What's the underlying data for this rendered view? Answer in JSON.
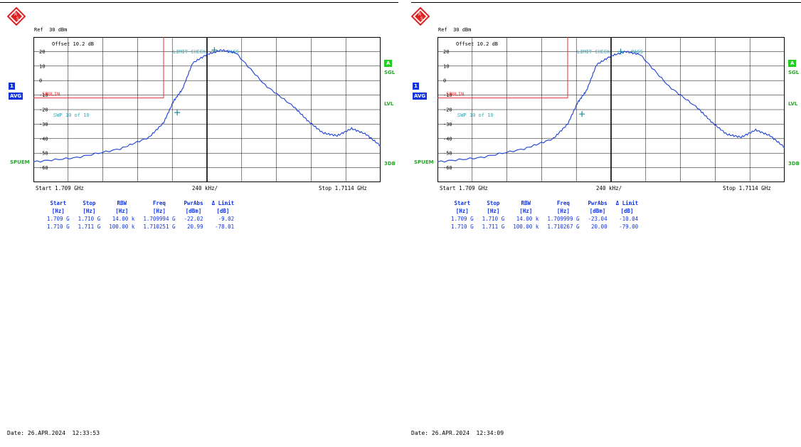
{
  "colors": {
    "trace": "#1a3fd8",
    "limit": "#e83030",
    "grid": "#000000",
    "label": "#3aa6b9",
    "blue_tag": "#1133dd",
    "green_tag": "#22cc22"
  },
  "panels": [
    {
      "ref_text": "Ref  30 dBm",
      "offset_text": "Offset  10.2 dB",
      "swp_text": "SWP   10 of    10",
      "limit_line_label": "SPULIN",
      "limit_check_label": "LIMIT CHECK",
      "limit_check_result": "PASS",
      "side_left": {
        "trace_num": "1",
        "trace_mode": "AVG",
        "mode": "SPUEM"
      },
      "side_right": {
        "A": "A",
        "SGL": "SGL",
        "LVL": "LVL",
        "DB": "3DB"
      },
      "start_label": "Start 1.709 GHz",
      "span_label": "240 kHz/",
      "stop_label": "Stop 1.7114 GHz",
      "table": {
        "headers": [
          [
            "Start",
            "[Hz]"
          ],
          [
            "Stop",
            "[Hz]"
          ],
          [
            "RBW",
            "[Hz]"
          ],
          [
            "Freq",
            "[Hz]"
          ],
          [
            "PwrAbs",
            "[dBm]"
          ],
          [
            "Δ Limit",
            "[dB]"
          ]
        ],
        "rows": [
          [
            "1.709 G",
            "1.710 G",
            "14.00 k",
            "1.709994 G",
            "-22.02",
            "-9.02"
          ],
          [
            "1.710 G",
            "1.711 G",
            "100.00 k",
            "1.710251 G",
            "20.99",
            "-78.01"
          ]
        ]
      },
      "date_text": "Date: 26.APR.2024  12:33:53",
      "chart_data": {
        "type": "line",
        "xlabel": "",
        "ylabel": "",
        "xlim": [
          1.709,
          1.7114
        ],
        "ylim": [
          -70,
          30
        ],
        "y_ticks": [
          20,
          10,
          0,
          -10,
          -20,
          -30,
          -40,
          -50,
          -60
        ],
        "grid": true,
        "x_unit": "GHz",
        "y_unit": "dBm",
        "limit_line": [
          [
            1.709,
            -12
          ],
          [
            1.7099,
            -12
          ]
        ],
        "limit_vertical_x": 1.7099,
        "markers": [
          [
            1.709994,
            -22.02
          ],
          [
            1.710251,
            20.99
          ]
        ],
        "series": [
          {
            "x": [
              1.709,
              1.7093,
              1.7096,
              1.7098,
              1.7099,
              1.70997,
              1.71003,
              1.7101,
              1.7102,
              1.7103,
              1.7104,
              1.7106,
              1.7108,
              1.7109,
              1.711,
              1.7111,
              1.7112,
              1.7113,
              1.7114
            ],
            "y": [
              -56,
              -53,
              -47,
              -39,
              -29,
              -14,
              -6,
              12,
              18,
              21,
              19,
              -3,
              -18,
              -28,
              -36,
              -38,
              -33,
              -37,
              -45
            ]
          }
        ]
      }
    },
    {
      "ref_text": "Ref  30 dBm",
      "offset_text": "Offset  10.2 dB",
      "swp_text": "SWP   10 of    10",
      "limit_line_label": "SPULIN",
      "limit_check_label": "LIMIT CHECK",
      "limit_check_result": "PASS",
      "side_left": {
        "trace_num": "1",
        "trace_mode": "AVG",
        "mode": "SPUEM"
      },
      "side_right": {
        "A": "A",
        "SGL": "SGL",
        "LVL": "LVL",
        "DB": "3DB"
      },
      "start_label": "Start 1.709 GHz",
      "span_label": "240 kHz/",
      "stop_label": "Stop 1.7114 GHz",
      "table": {
        "headers": [
          [
            "Start",
            "[Hz]"
          ],
          [
            "Stop",
            "[Hz]"
          ],
          [
            "RBW",
            "[Hz]"
          ],
          [
            "Freq",
            "[Hz]"
          ],
          [
            "PwrAbs",
            "[dBm]"
          ],
          [
            "Δ Limit",
            "[dB]"
          ]
        ],
        "rows": [
          [
            "1.709 G",
            "1.710 G",
            "14.00 k",
            "1.709999 G",
            "-23.04",
            "-10.04"
          ],
          [
            "1.710 G",
            "1.711 G",
            "100.00 k",
            "1.710267 G",
            "20.00",
            "-79.00"
          ]
        ]
      },
      "date_text": "Date: 26.APR.2024  12:34:09",
      "chart_data": {
        "type": "line",
        "xlabel": "",
        "ylabel": "",
        "xlim": [
          1.709,
          1.7114
        ],
        "ylim": [
          -70,
          30
        ],
        "y_ticks": [
          20,
          10,
          0,
          -10,
          -20,
          -30,
          -40,
          -50,
          -60
        ],
        "grid": true,
        "x_unit": "GHz",
        "y_unit": "dBm",
        "limit_line": [
          [
            1.709,
            -12
          ],
          [
            1.7099,
            -12
          ]
        ],
        "limit_vertical_x": 1.7099,
        "markers": [
          [
            1.709999,
            -23.04
          ],
          [
            1.710267,
            20.0
          ]
        ],
        "series": [
          {
            "x": [
              1.709,
              1.7093,
              1.7096,
              1.7098,
              1.7099,
              1.70997,
              1.71003,
              1.7101,
              1.7102,
              1.7103,
              1.7104,
              1.7106,
              1.7108,
              1.7109,
              1.711,
              1.7111,
              1.7112,
              1.7113,
              1.7114
            ],
            "y": [
              -56,
              -53,
              -47,
              -40,
              -30,
              -15,
              -7,
              11,
              17,
              20,
              18,
              -4,
              -19,
              -29,
              -37,
              -39,
              -34,
              -38,
              -46
            ]
          }
        ]
      }
    }
  ]
}
